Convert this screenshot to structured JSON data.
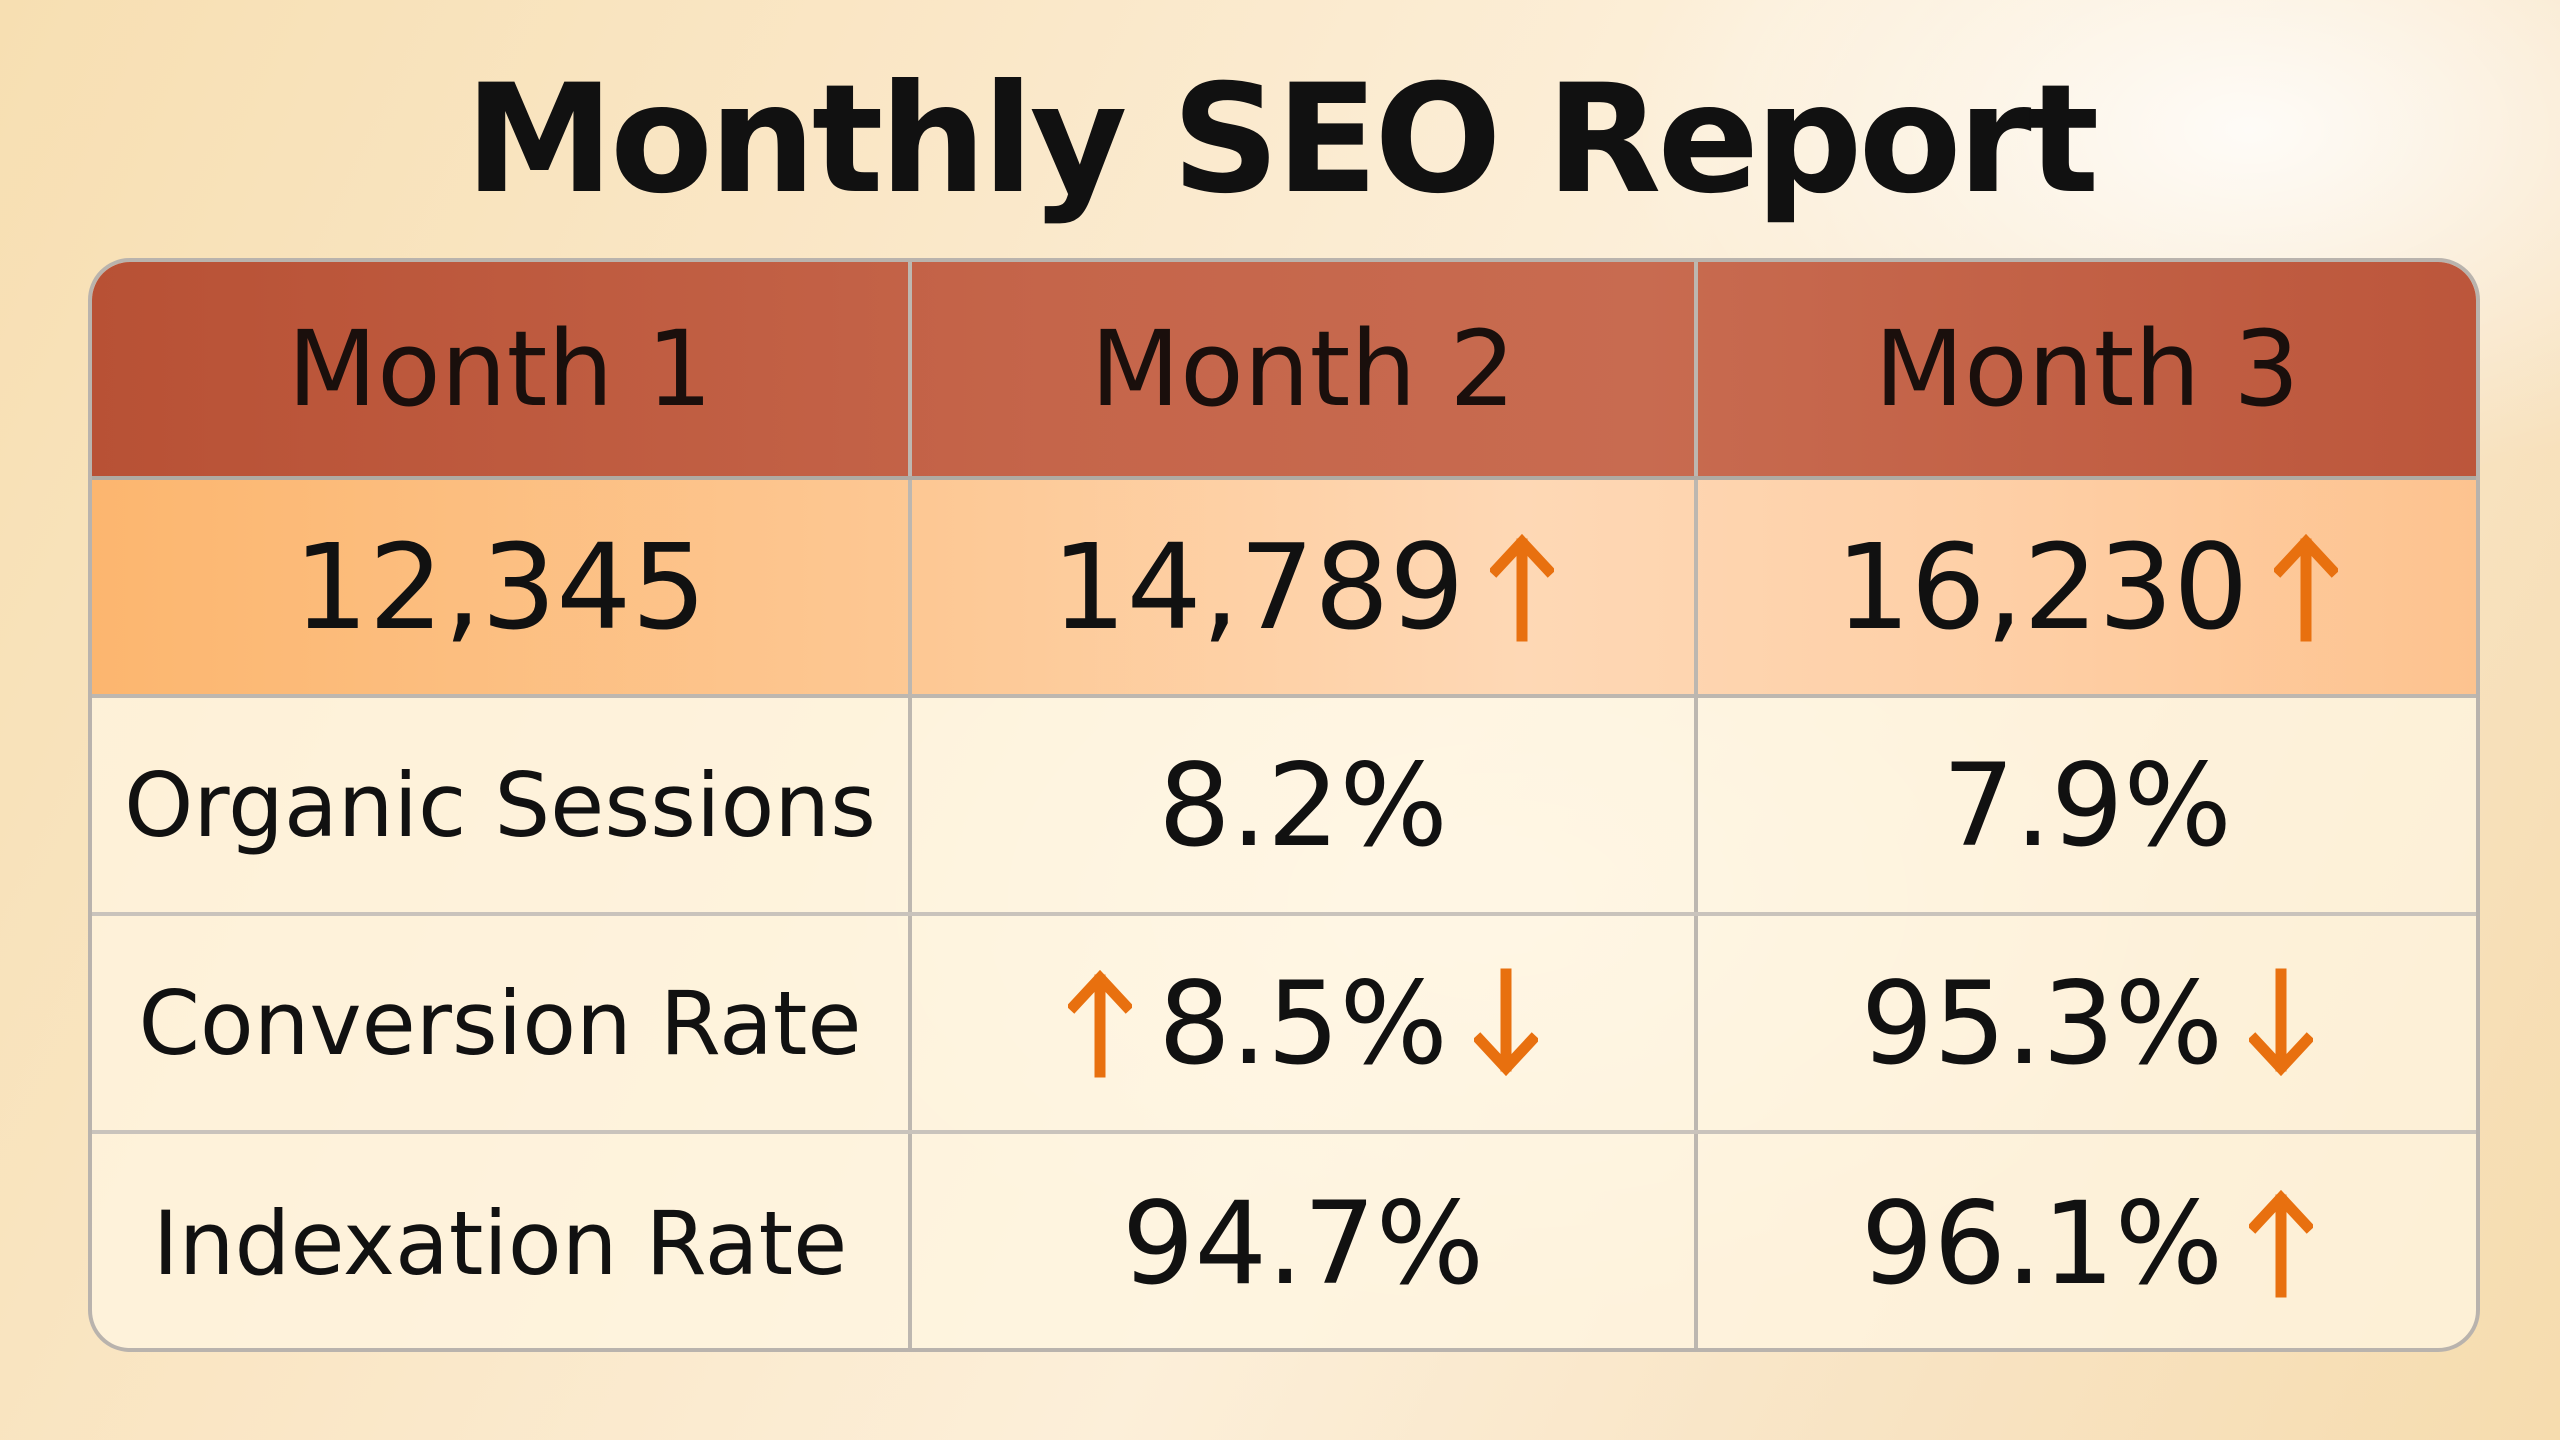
{
  "title": "Monthly SEO Report",
  "colors": {
    "header_bg": "#c0593d",
    "highlight_bg": "#fdc896",
    "arrow": "#e8700f",
    "text": "#111111"
  },
  "chart_data": {
    "type": "table",
    "title": "Monthly SEO Report",
    "columns": [
      "Month 1",
      "Month 2",
      "Month 3"
    ],
    "rows": [
      {
        "cells": [
          {
            "text": "12,345",
            "arrow_before": "",
            "arrow_after": ""
          },
          {
            "text": "14,789",
            "arrow_before": "",
            "arrow_after": "up"
          },
          {
            "text": "16,230",
            "arrow_before": "",
            "arrow_after": "up"
          }
        ]
      },
      {
        "cells": [
          {
            "text": "Organic Sessions",
            "arrow_before": "",
            "arrow_after": ""
          },
          {
            "text": "8.2%",
            "arrow_before": "",
            "arrow_after": ""
          },
          {
            "text": "7.9%",
            "arrow_before": "",
            "arrow_after": ""
          }
        ]
      },
      {
        "cells": [
          {
            "text": "Conversion Rate",
            "arrow_before": "",
            "arrow_after": ""
          },
          {
            "text": "8.5%",
            "arrow_before": "up",
            "arrow_after": "down"
          },
          {
            "text": "95.3%",
            "arrow_before": "",
            "arrow_after": "down"
          }
        ]
      },
      {
        "cells": [
          {
            "text": "Indexation Rate",
            "arrow_before": "",
            "arrow_after": ""
          },
          {
            "text": "94.7%",
            "arrow_before": "",
            "arrow_after": ""
          },
          {
            "text": "96.1%",
            "arrow_before": "",
            "arrow_after": "up"
          }
        ]
      }
    ]
  }
}
